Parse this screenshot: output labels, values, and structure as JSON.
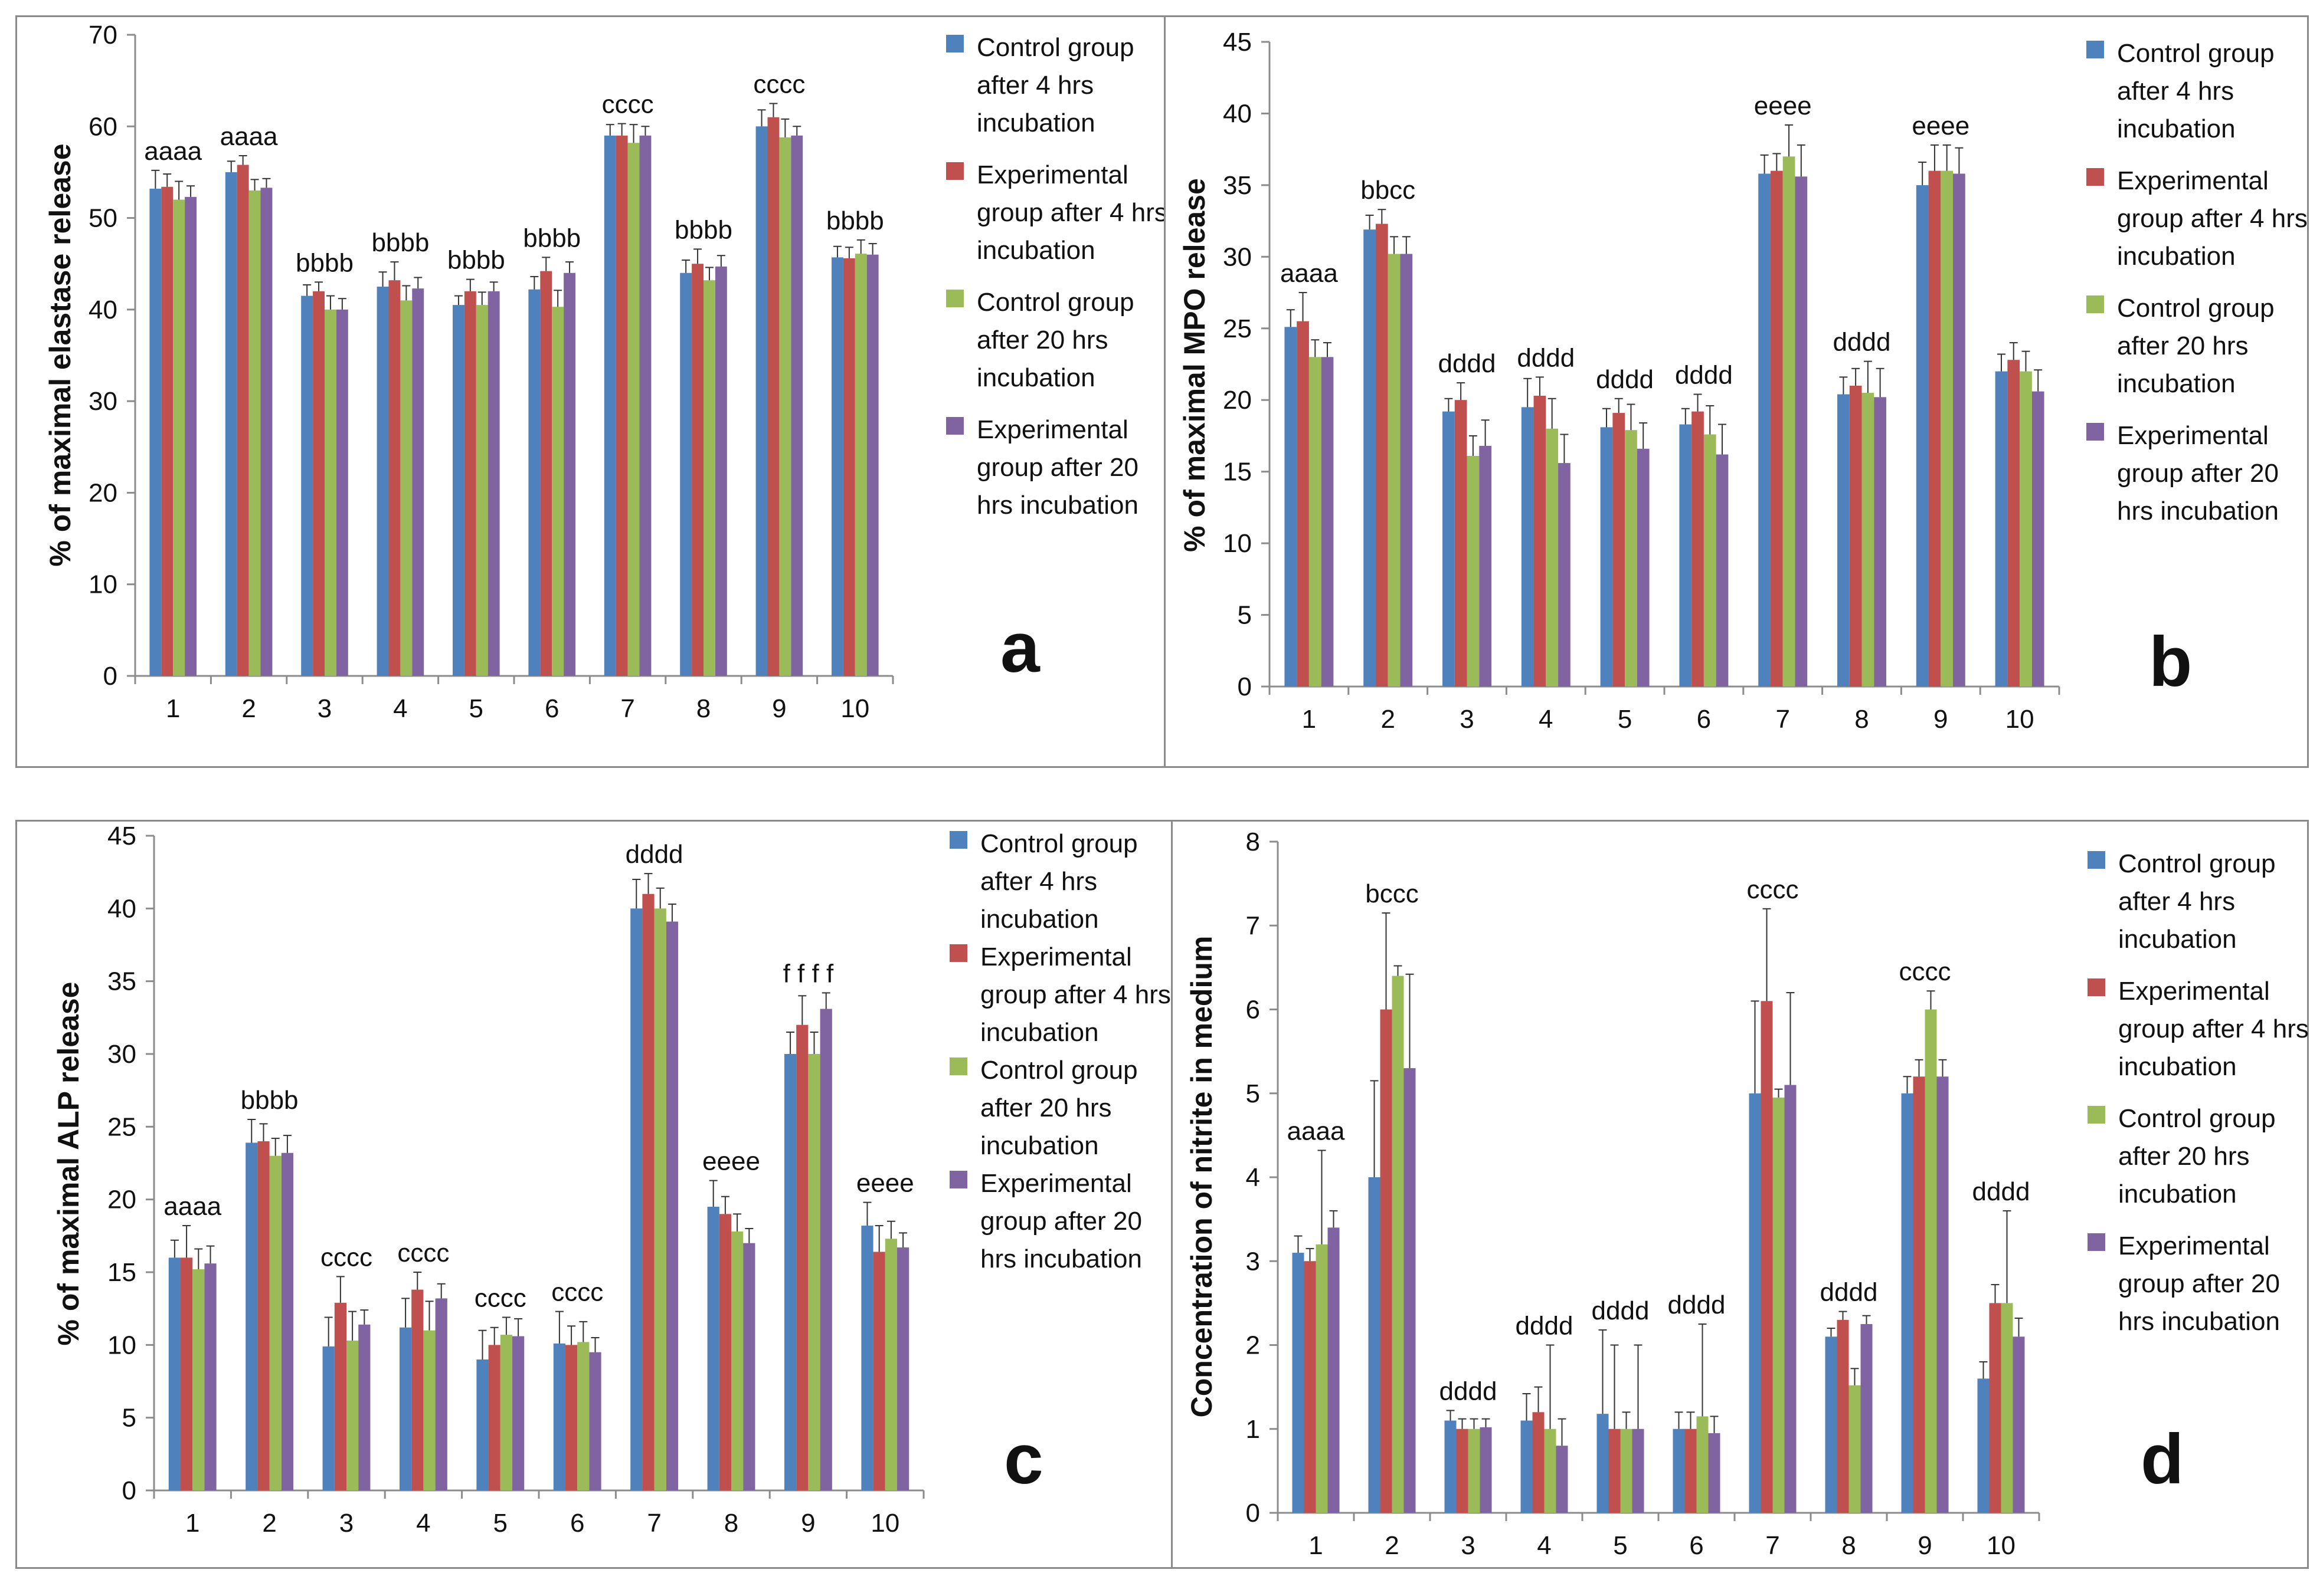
{
  "series_colors": [
    "#4f81bd",
    "#c0504d",
    "#9bbb59",
    "#8064a2"
  ],
  "chart_data": [
    {
      "id": "a",
      "type": "bar",
      "panel_label": "a",
      "ylabel": "% of maximal elastase release",
      "xlabel": "",
      "ylim": [
        0,
        70
      ],
      "ytick_step": 10,
      "categories": [
        "1",
        "2",
        "3",
        "4",
        "5",
        "6",
        "7",
        "8",
        "9",
        "10"
      ],
      "series": [
        {
          "name": "Control group after 4 hrs incubation",
          "values": [
            53.2,
            55.0,
            41.5,
            42.5,
            40.5,
            42.2,
            59.0,
            44.0,
            60.0,
            45.7
          ],
          "errors": [
            2.0,
            1.2,
            1.2,
            1.6,
            1.0,
            1.4,
            1.2,
            1.4,
            1.8,
            1.2
          ]
        },
        {
          "name": "Experimental group after 4 hrs incubation",
          "values": [
            53.4,
            55.8,
            42.0,
            43.2,
            42.0,
            44.2,
            59.0,
            45.0,
            61.0,
            45.6
          ],
          "errors": [
            1.4,
            1.0,
            1.0,
            2.0,
            1.3,
            1.5,
            1.3,
            1.6,
            1.5,
            1.2
          ]
        },
        {
          "name": "Control group after 20 hrs incubation",
          "values": [
            52.0,
            53.0,
            40.0,
            41.0,
            40.5,
            40.3,
            58.2,
            43.2,
            58.8,
            46.1
          ],
          "errors": [
            2.0,
            1.2,
            1.5,
            1.6,
            1.4,
            1.8,
            2.0,
            1.4,
            2.0,
            1.5
          ]
        },
        {
          "name": "Experimental group after 20 hrs incubation",
          "values": [
            52.3,
            53.3,
            40.0,
            42.3,
            42.0,
            44.0,
            59.0,
            44.7,
            59.0,
            46.0
          ],
          "errors": [
            1.2,
            1.0,
            1.2,
            1.2,
            1.0,
            1.2,
            1.0,
            1.2,
            1.0,
            1.2
          ]
        }
      ],
      "annotations": [
        "aaaa",
        "aaaa",
        "bbbb",
        "bbbb",
        "bbbb",
        "bbbb",
        "cccc",
        "bbbb",
        "cccc",
        "bbbb"
      ]
    },
    {
      "id": "b",
      "type": "bar",
      "panel_label": "b",
      "ylabel": "% of maximal MPO release",
      "xlabel": "",
      "ylim": [
        0,
        45
      ],
      "ytick_step": 5,
      "categories": [
        "1",
        "2",
        "3",
        "4",
        "5",
        "6",
        "7",
        "8",
        "9",
        "10"
      ],
      "series": [
        {
          "name": "Control group after 4 hrs incubation",
          "values": [
            25.1,
            31.9,
            19.2,
            19.5,
            18.1,
            18.3,
            35.8,
            20.4,
            35.0,
            22.0
          ],
          "errors": [
            1.2,
            1.0,
            0.9,
            2.0,
            1.3,
            1.1,
            1.3,
            1.2,
            1.6,
            1.2
          ]
        },
        {
          "name": "Experimental group after 4 hrs incubation",
          "values": [
            25.5,
            32.3,
            20.0,
            20.3,
            19.1,
            19.2,
            36.0,
            21.0,
            36.0,
            22.8
          ],
          "errors": [
            2.0,
            1.0,
            1.2,
            1.3,
            1.0,
            1.2,
            1.2,
            1.2,
            1.8,
            1.2
          ]
        },
        {
          "name": "Control group after 20 hrs incubation",
          "values": [
            23.0,
            30.2,
            16.1,
            18.0,
            17.9,
            17.6,
            37.0,
            20.5,
            36.0,
            22.0
          ],
          "errors": [
            1.2,
            1.2,
            1.4,
            2.1,
            1.8,
            2.0,
            2.2,
            2.2,
            1.8,
            1.4
          ]
        },
        {
          "name": "Experimental group after 20 hrs incubation",
          "values": [
            23.0,
            30.2,
            16.8,
            15.6,
            16.6,
            16.2,
            35.6,
            20.2,
            35.8,
            20.6
          ],
          "errors": [
            1.0,
            1.2,
            1.8,
            2.0,
            1.8,
            2.1,
            2.2,
            2.0,
            1.8,
            1.5
          ]
        }
      ],
      "annotations": [
        "aaaa",
        "bbcc",
        "dddd",
        "dddd",
        "dddd",
        "dddd",
        "eeee",
        "dddd",
        "eeee",
        ""
      ]
    },
    {
      "id": "c",
      "type": "bar",
      "panel_label": "c",
      "ylabel": "% of maximal ALP release",
      "xlabel": "",
      "ylim": [
        0,
        45
      ],
      "ytick_step": 5,
      "categories": [
        "1",
        "2",
        "3",
        "4",
        "5",
        "6",
        "7",
        "8",
        "9",
        "10"
      ],
      "series": [
        {
          "name": "Control group after 4 hrs incubation",
          "values": [
            16.0,
            23.9,
            9.9,
            11.2,
            9.0,
            10.1,
            40.0,
            19.5,
            30.0,
            18.2
          ],
          "errors": [
            1.2,
            1.6,
            2.0,
            2.0,
            2.0,
            2.2,
            2.0,
            1.8,
            1.5,
            1.6
          ]
        },
        {
          "name": "Experimental group after 4 hrs incubation",
          "values": [
            16.0,
            24.0,
            12.9,
            13.8,
            10.0,
            10.0,
            41.0,
            19.0,
            32.0,
            16.4
          ],
          "errors": [
            2.2,
            1.2,
            1.8,
            1.2,
            1.2,
            1.3,
            1.4,
            1.2,
            2.0,
            1.8
          ]
        },
        {
          "name": "Control group after 20 hrs incubation",
          "values": [
            15.2,
            23.0,
            10.3,
            11.0,
            10.7,
            10.2,
            40.0,
            17.8,
            30.0,
            17.3
          ],
          "errors": [
            1.4,
            1.2,
            2.0,
            2.0,
            1.2,
            1.4,
            1.4,
            1.2,
            1.5,
            1.2
          ]
        },
        {
          "name": "Experimental group after 20 hrs incubation",
          "values": [
            15.6,
            23.2,
            11.4,
            13.2,
            10.6,
            9.5,
            39.1,
            17.0,
            33.1,
            16.7
          ],
          "errors": [
            1.2,
            1.2,
            1.0,
            1.0,
            1.2,
            1.0,
            1.2,
            1.0,
            1.1,
            1.0
          ]
        }
      ],
      "annotations": [
        "aaaa",
        "bbbb",
        "cccc",
        "cccc",
        "cccc",
        "cccc",
        "dddd",
        "eeee",
        "f f f f",
        "eeee"
      ]
    },
    {
      "id": "d",
      "type": "bar",
      "panel_label": "d",
      "ylabel": "Concentration of nitrite in medium",
      "xlabel": "",
      "ylim": [
        0,
        8
      ],
      "ytick_step": 1,
      "categories": [
        "1",
        "2",
        "3",
        "4",
        "5",
        "6",
        "7",
        "8",
        "9",
        "10"
      ],
      "series": [
        {
          "name": "Control group after 4 hrs incubation",
          "values": [
            3.1,
            4.0,
            1.1,
            1.1,
            1.18,
            1.0,
            5.0,
            2.1,
            5.0,
            1.6
          ],
          "errors": [
            0.2,
            1.15,
            0.12,
            0.32,
            1.0,
            0.2,
            1.1,
            0.1,
            0.2,
            0.2
          ]
        },
        {
          "name": "Experimental group after 4 hrs incubation",
          "values": [
            3.0,
            6.0,
            1.0,
            1.2,
            1.0,
            1.0,
            6.1,
            2.3,
            5.2,
            2.5
          ],
          "errors": [
            0.15,
            1.15,
            0.12,
            0.3,
            1.0,
            0.2,
            1.1,
            0.1,
            0.2,
            0.22
          ]
        },
        {
          "name": "Control group after 20 hrs incubation",
          "values": [
            3.2,
            6.4,
            1.0,
            1.0,
            1.0,
            1.15,
            4.95,
            1.52,
            6.0,
            2.5
          ],
          "errors": [
            1.12,
            0.12,
            0.12,
            1.0,
            0.2,
            1.1,
            0.1,
            0.2,
            0.22,
            1.1
          ]
        },
        {
          "name": "Experimental group after 20 hrs incubation",
          "values": [
            3.4,
            5.3,
            1.02,
            0.8,
            1.0,
            0.95,
            5.1,
            2.25,
            5.2,
            2.1
          ],
          "errors": [
            0.2,
            1.12,
            0.1,
            0.32,
            1.0,
            0.2,
            1.1,
            0.1,
            0.2,
            0.22
          ]
        }
      ],
      "annotations": [
        "aaaa",
        "bccc",
        "dddd",
        "dddd",
        "dddd",
        "dddd",
        "cccc",
        "dddd",
        "cccc",
        "dddd"
      ]
    }
  ]
}
